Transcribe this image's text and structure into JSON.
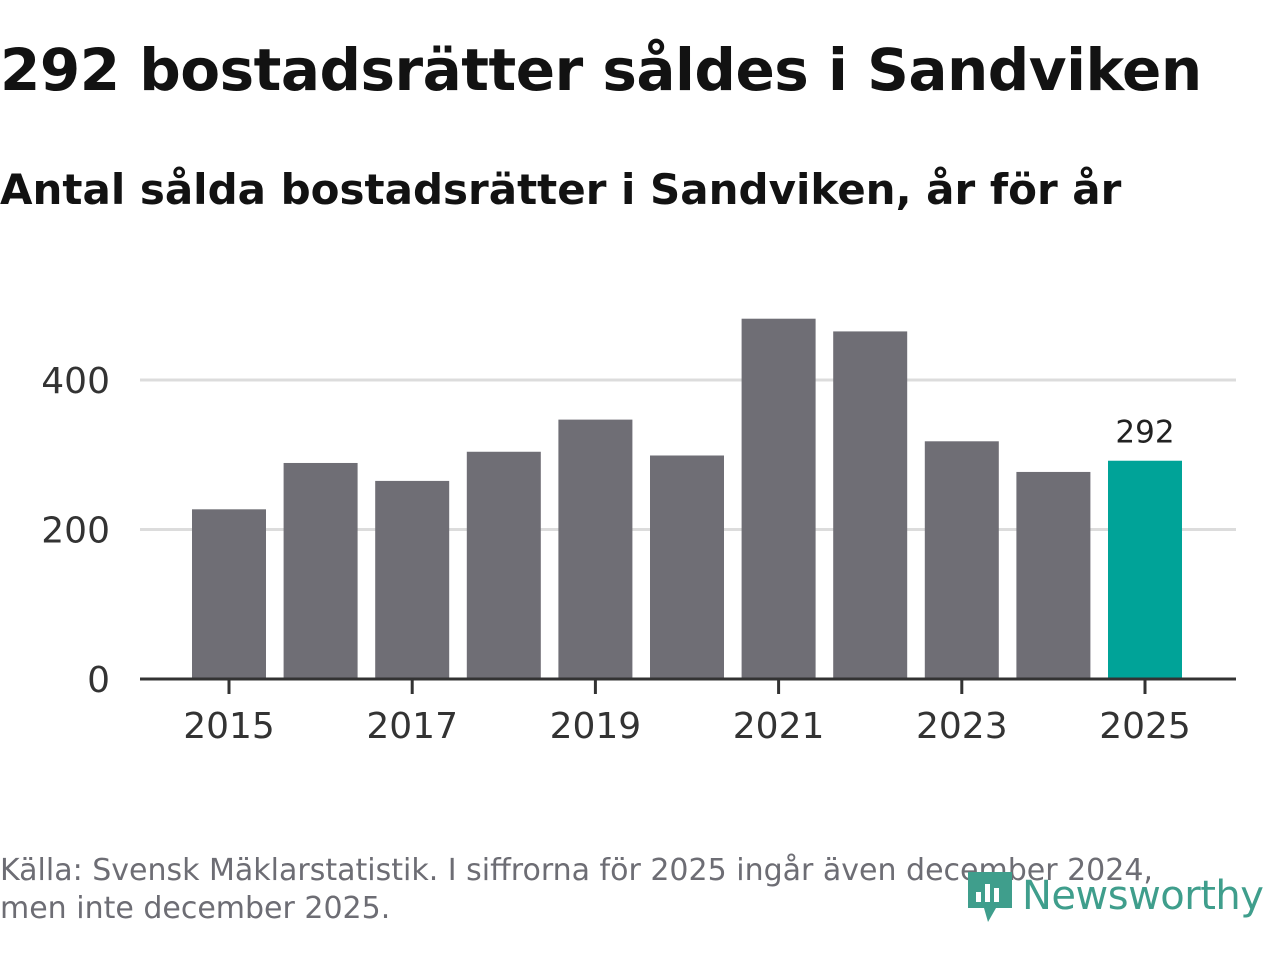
{
  "header": {
    "title": "292 bostadsrätter såldes i Sandviken",
    "subtitle": "Antal sålda bostadsrätter i Sandviken, år för år"
  },
  "footer": {
    "source_line1": "Källa: Svensk Mäklarstatistik. I siffrorna för 2025 ingår även december 2024,",
    "source_line2": "men inte december 2025.",
    "logo_text": "Newsworthy"
  },
  "colors": {
    "bar": "#6f6e75",
    "highlight": "#00a398",
    "grid": "#dcdcdc",
    "axis": "#333333",
    "tick_text": "#333333",
    "logo": "#3f9e8c"
  },
  "chart_data": {
    "type": "bar",
    "title": "292 bostadsrätter såldes i Sandviken",
    "subtitle": "Antal sålda bostadsrätter i Sandviken, år för år",
    "xlabel": "",
    "ylabel": "",
    "categories": [
      "2015",
      "2016",
      "2017",
      "2018",
      "2019",
      "2020",
      "2021",
      "2022",
      "2023",
      "2024",
      "2025"
    ],
    "values": [
      227,
      289,
      265,
      304,
      347,
      299,
      482,
      465,
      318,
      277,
      292
    ],
    "highlight_index": 10,
    "data_labels": [
      {
        "index": 10,
        "text": "292"
      }
    ],
    "x_tick_labels": [
      "2015",
      "2017",
      "2019",
      "2021",
      "2023",
      "2025"
    ],
    "y_ticks": [
      0,
      200,
      400
    ],
    "y_tick_labels": [
      "0",
      "200",
      "400"
    ],
    "ylim": [
      0,
      520
    ],
    "grid": true
  }
}
